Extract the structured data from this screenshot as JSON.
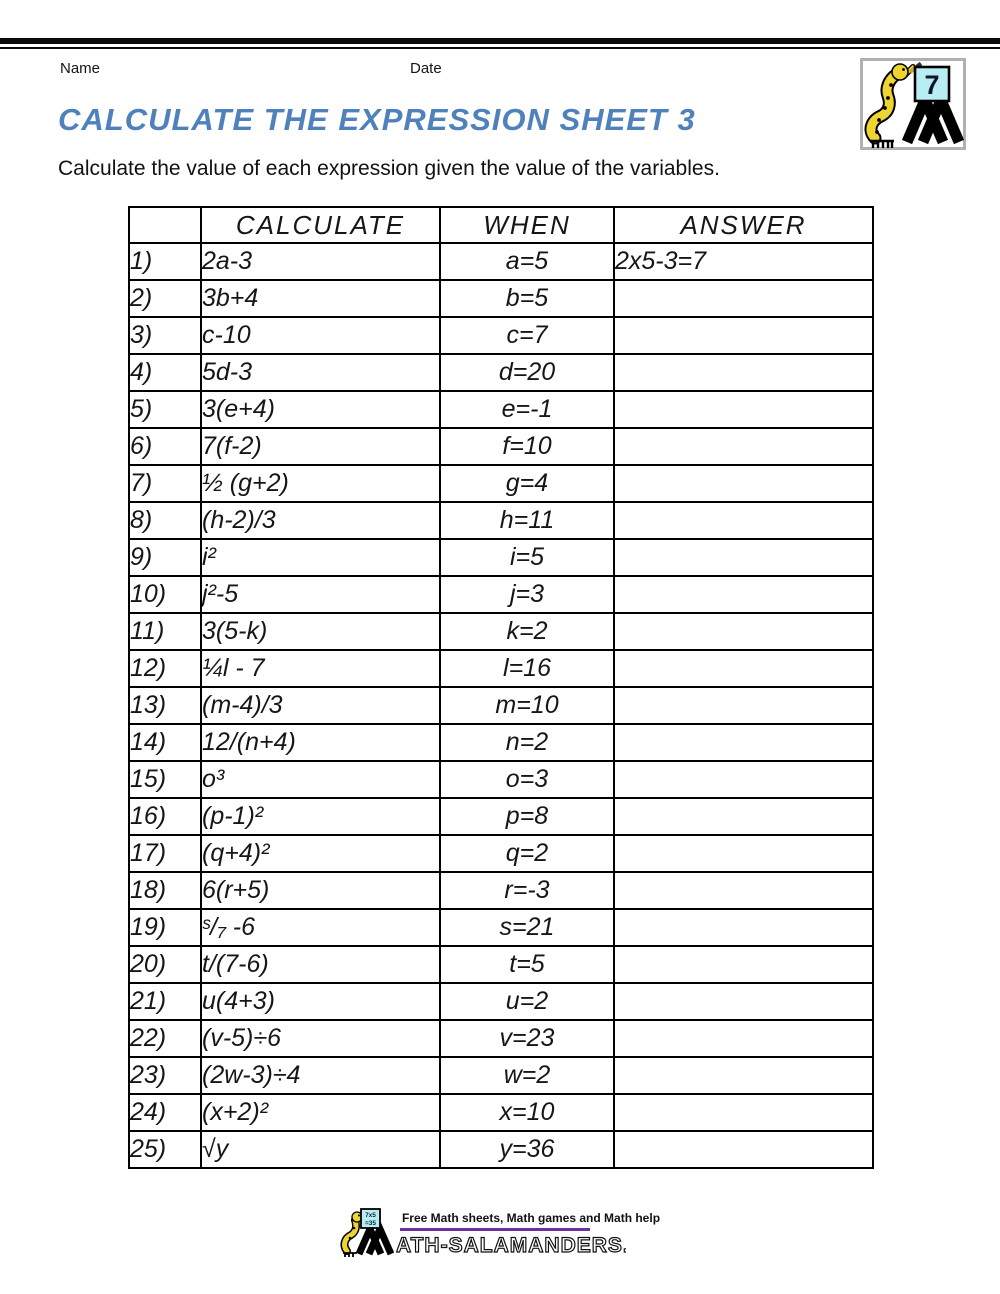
{
  "header": {
    "name_label": "Name",
    "date_label": "Date"
  },
  "badge": {
    "number": "7"
  },
  "title": "CALCULATE THE EXPRESSION SHEET 3",
  "instruction": "Calculate the value of each expression given the value of the variables.",
  "colors": {
    "title_blue": "#4f81bd",
    "footer_rule_purple": "#7030a0",
    "card_cyan": "#b9edf4",
    "salamander_yellow": "#eed42f"
  },
  "table": {
    "headers": {
      "calculate": "CALCULATE",
      "when": "WHEN",
      "answer": "ANSWER"
    },
    "rows": [
      {
        "num": "1)",
        "calculate": "2a-3",
        "when": "a=5",
        "answer": "2x5-3=7"
      },
      {
        "num": "2)",
        "calculate": "3b+4",
        "when": "b=5",
        "answer": ""
      },
      {
        "num": "3)",
        "calculate": "c-10",
        "when": "c=7",
        "answer": ""
      },
      {
        "num": "4)",
        "calculate": "5d-3",
        "when": "d=20",
        "answer": ""
      },
      {
        "num": "5)",
        "calculate": "3(e+4)",
        "when": "e=-1",
        "answer": ""
      },
      {
        "num": "6)",
        "calculate": "7(f-2)",
        "when": "f=10",
        "answer": ""
      },
      {
        "num": "7)",
        "calculate": "½ (g+2)",
        "when": "g=4",
        "answer": ""
      },
      {
        "num": "8)",
        "calculate": "(h-2)/3",
        "when": "h=11",
        "answer": ""
      },
      {
        "num": "9)",
        "calculate": "i²",
        "when": "i=5",
        "answer": ""
      },
      {
        "num": "10)",
        "calculate": "j²-5",
        "when": "j=3",
        "answer": ""
      },
      {
        "num": "11)",
        "calculate": "3(5-k)",
        "when": "k=2",
        "answer": ""
      },
      {
        "num": "12)",
        "calculate": "¼l - 7",
        "when": "l=16",
        "answer": ""
      },
      {
        "num": "13)",
        "calculate": "(m-4)/3",
        "when": "m=10",
        "answer": ""
      },
      {
        "num": "14)",
        "calculate": "12/(n+4)",
        "when": "n=2",
        "answer": ""
      },
      {
        "num": "15)",
        "calculate": "o³",
        "when": "o=3",
        "answer": ""
      },
      {
        "num": "16)",
        "calculate": "(p-1)²",
        "when": "p=8",
        "answer": ""
      },
      {
        "num": "17)",
        "calculate": "(q+4)²",
        "when": "q=2",
        "answer": ""
      },
      {
        "num": "18)",
        "calculate": "6(r+5)",
        "when": "r=-3",
        "answer": ""
      },
      {
        "num": "19)",
        "calculate": "ˢ/₇ -6",
        "when": "s=21",
        "answer": ""
      },
      {
        "num": "20)",
        "calculate": "t/(7-6)",
        "when": "t=5",
        "answer": ""
      },
      {
        "num": "21)",
        "calculate": "u(4+3)",
        "when": "u=2",
        "answer": ""
      },
      {
        "num": "22)",
        "calculate": "(v-5)÷6",
        "when": "v=23",
        "answer": ""
      },
      {
        "num": "23)",
        "calculate": "(2w-3)÷4",
        "when": "w=2",
        "answer": ""
      },
      {
        "num": "24)",
        "calculate": "(x+2)²",
        "when": "x=10",
        "answer": ""
      },
      {
        "num": "25)",
        "calculate": "√y",
        "when": "y=36",
        "answer": ""
      }
    ]
  },
  "footer": {
    "tagline": "Free Math sheets, Math games and Math help",
    "wordmark": "ATH-SALAMANDERS.COM",
    "card_line1": "7x5",
    "card_line2": "=35"
  }
}
